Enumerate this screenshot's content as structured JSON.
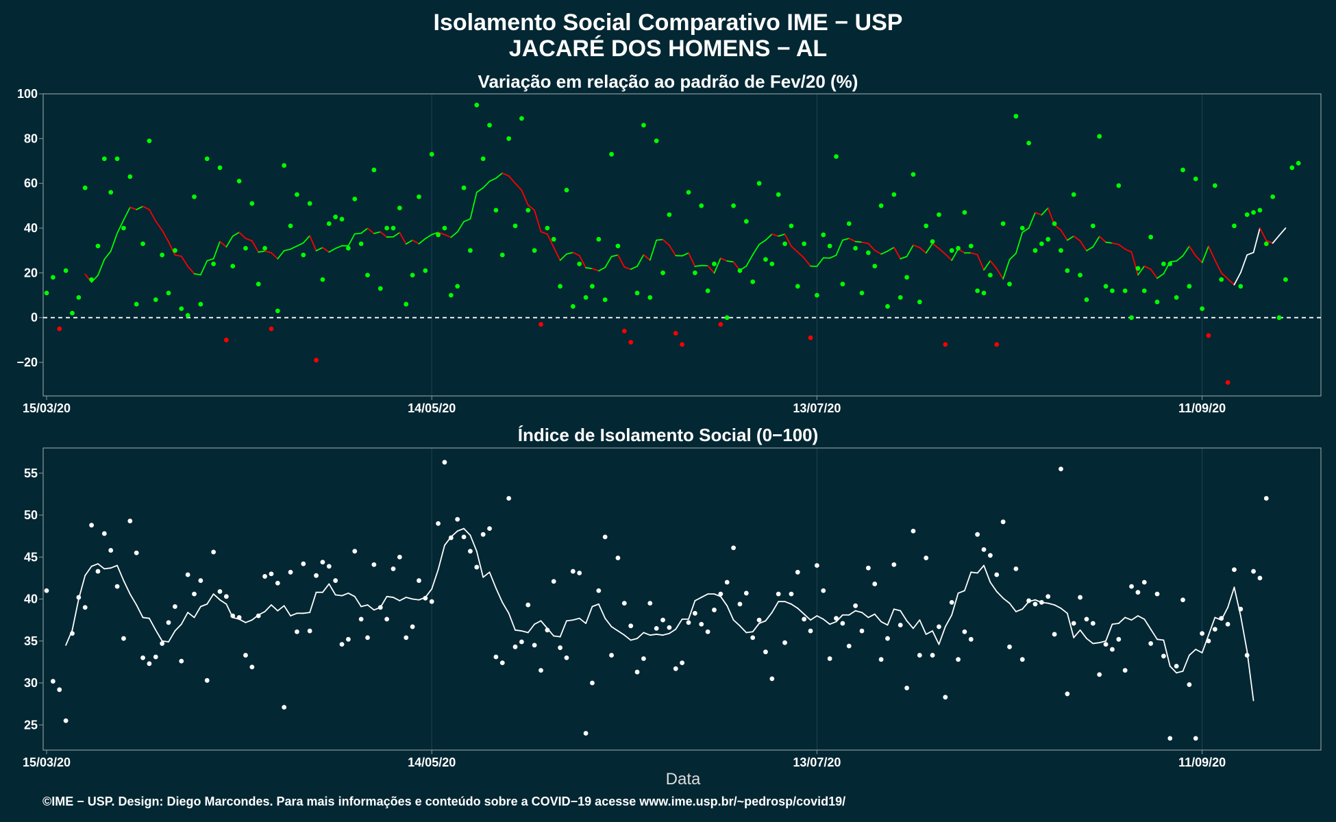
{
  "header": {
    "title": "Isolamento Social Comparativo IME − USP",
    "subtitle": "JACARÉ DOS HOMENS − AL"
  },
  "footer": {
    "credit": "©IME − USP. Design: Diego Marcondes. Para mais informações e conteúdo sobre a COVID−19 acesse www.ime.usp.br/~pedrosp/covid19/"
  },
  "colors": {
    "background": "#032733",
    "positive": "#00ff00",
    "negative": "#ff0000",
    "index": "#ffffff",
    "frame": "#8a9aa0",
    "grid": "#1f4450"
  },
  "chart_data": [
    {
      "type": "scatter",
      "title": "Variação em relação ao padrão de Fev/20 (%)",
      "xlabel": "",
      "ylabel": "",
      "x_start": "15/03/20",
      "xticks": [
        "15/03/20",
        "14/05/20",
        "13/07/20",
        "11/09/20"
      ],
      "xtick_day_offsets": [
        0,
        60,
        120,
        180
      ],
      "ylim": [
        -35,
        100
      ],
      "yticks": [
        "100",
        "80",
        "60",
        "40",
        "20",
        "0",
        "−20"
      ],
      "ytick_values": [
        100,
        80,
        60,
        40,
        20,
        0,
        -20
      ],
      "reference_line": 0,
      "grid": true,
      "series": [
        {
          "values": [
            11,
            18,
            -5,
            21,
            2,
            9,
            58,
            17,
            32,
            71,
            56,
            71,
            40,
            63,
            6,
            33,
            79,
            8,
            28,
            11,
            30,
            4,
            1,
            54,
            6,
            71,
            24,
            67,
            -10,
            23,
            61,
            31,
            51,
            15,
            31,
            -5,
            3,
            68,
            41,
            55,
            28,
            51,
            -19,
            17,
            42,
            45,
            44,
            31,
            53,
            33,
            19,
            66,
            13,
            40,
            40,
            49,
            6,
            19,
            54,
            21,
            73,
            37,
            40,
            10,
            14,
            58,
            30,
            95,
            71,
            86,
            48,
            28,
            80,
            41,
            89,
            48,
            30,
            -3,
            40,
            35,
            14,
            57,
            5,
            24,
            9,
            14,
            35,
            8,
            73,
            32,
            -6,
            -11,
            11,
            86,
            9,
            79,
            20,
            46,
            -7,
            -12,
            56,
            20,
            50,
            12,
            24,
            -3,
            0,
            50,
            21,
            43,
            16,
            60,
            26,
            24,
            55,
            33,
            41,
            14,
            33,
            -9,
            10,
            37,
            32,
            72,
            15,
            42,
            31,
            11,
            29,
            23,
            50,
            5,
            55,
            9,
            18,
            64,
            7,
            41,
            34,
            46,
            -12,
            30,
            31,
            47,
            32,
            12,
            11,
            19,
            -12,
            42,
            15,
            90,
            40,
            78,
            30,
            33,
            35,
            42,
            30,
            21,
            55,
            19,
            8,
            41,
            81,
            14,
            12,
            59,
            12,
            0,
            22,
            12,
            36,
            7,
            24,
            24,
            9,
            66,
            14,
            62,
            4,
            -8,
            59,
            17,
            -29,
            41,
            14,
            46,
            47,
            48,
            33,
            54,
            0,
            17,
            67,
            69
          ]
        }
      ],
      "moving_average": [
        null,
        null,
        null,
        null,
        null,
        null,
        19.4,
        15.8,
        18.9,
        26.0,
        29.7,
        37.7,
        43.6,
        49.3,
        48.3,
        49.7,
        48.3,
        43.1,
        39.0,
        33.9,
        28.0,
        27.4,
        22.9,
        19.6,
        19.1,
        25.4,
        26.3,
        34.0,
        31.6,
        36.4,
        38.1,
        35.4,
        34.3,
        29.3,
        29.7,
        29.0,
        26.3,
        29.9,
        30.6,
        32.0,
        33.4,
        36.6,
        29.9,
        31.3,
        29.3,
        30.9,
        32.1,
        32.1,
        37.4,
        37.7,
        39.9,
        37.6,
        38.3,
        36.0,
        36.1,
        38.0,
        32.9,
        34.6,
        33.0,
        35.3,
        37.1,
        38.1,
        37.1,
        35.9,
        38.3,
        42.9,
        44.1,
        56.0,
        58.0,
        60.9,
        62.3,
        64.6,
        63.3,
        60.0,
        56.9,
        50.3,
        48.0,
        38.4,
        37.3,
        31.4,
        25.6,
        28.4,
        29.1,
        27.7,
        22.3,
        21.9,
        20.9,
        22.4,
        27.3,
        28.0,
        22.6,
        21.6,
        22.9,
        28.1,
        25.7,
        34.6,
        34.9,
        32.3,
        27.7,
        27.6,
        28.9,
        22.9,
        23.3,
        23.2,
        19.9,
        26.6,
        25.3,
        24.9,
        21.1,
        23.0,
        28.1,
        32.7,
        34.6,
        37.3,
        36.4,
        37.3,
        31.9,
        29.3,
        26.6,
        23.0,
        22.9,
        26.7,
        26.6,
        27.9,
        34.6,
        35.4,
        34.0,
        33.7,
        33.1,
        30.1,
        28.4,
        29.7,
        31.4,
        26.3,
        27.3,
        32.4,
        31.3,
        28.9,
        33.1,
        30.9,
        28.4,
        25.6,
        30.7,
        28.9,
        28.9,
        28.1,
        21.3,
        25.4,
        21.9,
        17.3,
        25.9,
        28.7,
        38.1,
        40.0,
        46.9,
        45.9,
        49.0,
        41.4,
        39.1,
        34.6,
        36.4,
        34.3,
        29.9,
        31.6,
        36.3,
        33.7,
        33.3,
        32.7,
        30.6,
        29.3,
        19.1,
        23.0,
        21.6,
        17.6,
        19.6,
        24.9,
        25.3,
        27.6,
        31.9,
        27.6,
        24.6,
        31.9,
        25.7,
        20.0,
        17.3,
        14.7,
        20.1,
        28.0,
        29.1,
        40.0,
        34.4,
        33.3,
        36.7,
        40.0
      ]
    },
    {
      "type": "scatter",
      "title": "Índice de Isolamento Social (0−100)",
      "xlabel": "Data",
      "ylabel": "",
      "x_start": "15/03/20",
      "xticks": [
        "15/03/20",
        "14/05/20",
        "13/07/20",
        "11/09/20"
      ],
      "xtick_day_offsets": [
        0,
        60,
        120,
        180
      ],
      "ylim": [
        22,
        58
      ],
      "yticks": [
        "55",
        "50",
        "45",
        "40",
        "35",
        "30",
        "25"
      ],
      "ytick_values": [
        55,
        50,
        45,
        40,
        35,
        30,
        25
      ],
      "grid": true,
      "series": [
        {
          "values": [
            41,
            30.2,
            29.2,
            25.5,
            35.9,
            40.2,
            39,
            48.8,
            43.3,
            47.8,
            45.8,
            41.5,
            35.3,
            49.3,
            45.5,
            33.0,
            32.3,
            33.1,
            34.7,
            37.2,
            39.1,
            32.6,
            42.9,
            40.6,
            42.2,
            30.3,
            45.6,
            40.9,
            40.3,
            38.0,
            37.8,
            33.3,
            31.9,
            38.0,
            42.7,
            43.0,
            41.9,
            27.1,
            43.2,
            36.1,
            44.2,
            36.2,
            42.8,
            44.4,
            43.9,
            42.2,
            34.6,
            35.2,
            45.7,
            37.6,
            35.4,
            44.1,
            39.0,
            37.6,
            43.6,
            45.0,
            35.4,
            36.7,
            42.2,
            40.1,
            39.7,
            49.0,
            56.3,
            47.3,
            49.5,
            47.4,
            45.7,
            43.8,
            47.7,
            48.4,
            33.1,
            32.4,
            52.0,
            34.3,
            34.9,
            39.3,
            34.5,
            31.5,
            36.3,
            42.1,
            34.2,
            33.0,
            43.3,
            43.1,
            24.0,
            30.0,
            41.0,
            47.4,
            33.3,
            44.9,
            39.5,
            36.8,
            31.3,
            32.9,
            39.5,
            36.5,
            37.5,
            36.6,
            31.7,
            32.4,
            37.2,
            38.3,
            37.0,
            36.1,
            38.7,
            40.6,
            42.0,
            46.1,
            39.4,
            40.7,
            35.4,
            37.5,
            33.7,
            30.5,
            40.6,
            34.8,
            40.6,
            43.2,
            37.6,
            36.2,
            44.0,
            41.0,
            32.9,
            37.7,
            37.1,
            34.4,
            39.2,
            36.2,
            43.7,
            41.8,
            32.8,
            35.3,
            44.1,
            36.9,
            29.4,
            48.1,
            33.3,
            44.9,
            33.3,
            36.7,
            28.3,
            39.6,
            32.8,
            36.1,
            35.2,
            47.7,
            45.9,
            45.2,
            42.9,
            49.2,
            34.3,
            43.6,
            32.8,
            39.8,
            39.4,
            39.6,
            40.3,
            35.8,
            55.5,
            28.7,
            37.1,
            40.2,
            37.6,
            37.1,
            31.0,
            34.6,
            34.0,
            35.2,
            31.5,
            41.5,
            40.8,
            42.0,
            34.7,
            40.6,
            33.2,
            23.4,
            32.0,
            39.9,
            29.8,
            23.4,
            35.9,
            35.0,
            36.4,
            37.7,
            37.0,
            43.5,
            38.8,
            33.3,
            43.3,
            42.5,
            52.0
          ]
        }
      ],
      "moving_average": [
        null,
        null,
        null,
        34.5,
        36.3,
        40.0,
        42.8,
        43.9,
        44.2,
        43.6,
        43.7,
        44.0,
        42.2,
        40.6,
        39.3,
        37.8,
        37.7,
        36.3,
        35.0,
        34.9,
        36.2,
        37.0,
        38.4,
        37.8,
        39.1,
        39.4,
        40.6,
        39.9,
        39.4,
        37.8,
        37.6,
        37.2,
        37.5,
        38.1,
        38.5,
        39.3,
        38.6,
        39.2,
        38.0,
        38.3,
        38.3,
        38.4,
        40.8,
        40.8,
        41.8,
        40.5,
        40.4,
        40.7,
        40.3,
        39.1,
        39.3,
        38.7,
        39.0,
        40.3,
        40.2,
        39.8,
        40.2,
        40.0,
        39.9,
        40.2,
        41.2,
        43.5,
        46.4,
        47.4,
        48.1,
        48.4,
        47.6,
        45.7,
        42.6,
        43.2,
        41.3,
        39.6,
        38.3,
        36.3,
        36.2,
        36.0,
        37.0,
        37.4,
        36.5,
        35.6,
        35.5,
        37.4,
        37.5,
        37.7,
        37.1,
        39.1,
        39.4,
        37.7,
        36.7,
        36.2,
        35.7,
        35.1,
        35.3,
        36.0,
        35.7,
        35.8,
        35.7,
        35.9,
        36.4,
        37.6,
        37.6,
        39.8,
        40.2,
        40.6,
        40.6,
        40.3,
        39.2,
        37.5,
        36.8,
        36.0,
        36.1,
        37.1,
        37.4,
        38.4,
        39.7,
        39.7,
        39.4,
        38.9,
        38.2,
        37.5,
        38.0,
        37.6,
        37.0,
        37.3,
        38.1,
        38.1,
        38.6,
        38.4,
        37.8,
        38.2,
        37.3,
        36.9,
        38.8,
        38.6,
        37.4,
        36.5,
        37.5,
        35.8,
        36.2,
        34.6,
        36.7,
        38.1,
        40.7,
        41.0,
        43.2,
        43.1,
        44.0,
        42.0,
        40.9,
        40.1,
        39.5,
        38.5,
        38.8,
        39.7,
        39.9,
        39.6,
        39.5,
        39.3,
        38.9,
        38.3,
        35.4,
        36.3,
        35.3,
        34.7,
        34.8,
        35.0,
        37.0,
        37.1,
        37.8,
        37.5,
        38.0,
        37.6,
        36.4,
        35.2,
        35.1,
        32.0,
        31.2,
        31.4,
        33.3,
        34.0,
        33.6,
        35.7,
        37.8,
        37.5,
        39.0,
        41.4,
        38.0,
        33.8,
        27.9
      ]
    }
  ]
}
